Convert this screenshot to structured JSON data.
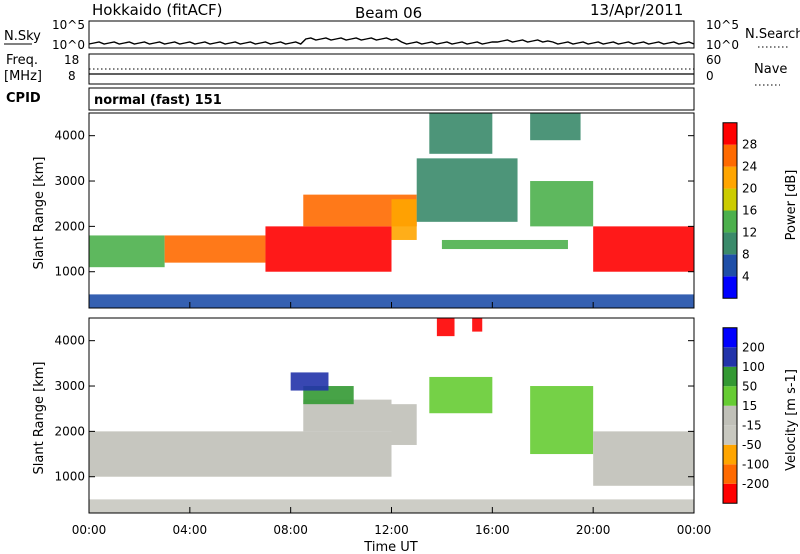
{
  "header": {
    "station": "Hokkaido (fitACF)",
    "beam": "Beam 06",
    "date": "13/Apr/2011"
  },
  "noise_panel": {
    "left_label": "N.Sky",
    "right_label": "N.Search",
    "ticks_left": [
      "10^5",
      "10^0"
    ],
    "ticks_right": [
      "10^5",
      "10^0"
    ]
  },
  "freq_panel": {
    "left_label_line1": "Freq.",
    "left_label_line2": "[MHz]",
    "right_label": "Nave",
    "ticks_left": [
      "18",
      "8"
    ],
    "ticks_right": [
      "60",
      "0"
    ]
  },
  "cpid": {
    "label": "CPID",
    "value": "normal (fast) 151"
  },
  "axes": {
    "ylabel": "Slant Range [km]",
    "xlabel": "Time UT",
    "y_ticks": [
      "4000",
      "3000",
      "2000",
      "1000"
    ],
    "x_ticks": [
      "00:00",
      "04:00",
      "08:00",
      "12:00",
      "16:00",
      "20:00",
      "00:00"
    ]
  },
  "colors": {
    "power_scale": [
      "#0000ff",
      "#1f4fa8",
      "#3a8a6a",
      "#4cb04c",
      "#cccc00",
      "#ffa500",
      "#ff6a00",
      "#ff0000"
    ],
    "velocity_scale": [
      "#ff0000",
      "#ff6a00",
      "#ffa500",
      "#c8c8c0",
      "#c0c0b8",
      "#66cc33",
      "#339933",
      "#2233aa",
      "#0000ff"
    ]
  },
  "chart_data": [
    {
      "type": "heatmap",
      "title": "",
      "xlabel": "Time UT",
      "ylabel": "Slant Range [km]",
      "xlim": [
        0,
        24
      ],
      "ylim": [
        200,
        4500
      ],
      "colorbar": {
        "label": "Power [dB]",
        "ticks": [
          "28",
          "24",
          "20",
          "16",
          "12",
          "8",
          "4"
        ]
      },
      "regions": [
        {
          "t0": 0,
          "t1": 3,
          "r0": 1100,
          "r1": 1800,
          "value": 12
        },
        {
          "t0": 3,
          "t1": 7,
          "r0": 1200,
          "r1": 1800,
          "value": 24
        },
        {
          "t0": 7,
          "t1": 12,
          "r0": 1000,
          "r1": 2000,
          "value": 28
        },
        {
          "t0": 8.5,
          "t1": 13,
          "r0": 2000,
          "r1": 2700,
          "value": 24
        },
        {
          "t0": 12,
          "t1": 13,
          "r0": 1700,
          "r1": 2600,
          "value": 20
        },
        {
          "t0": 13,
          "t1": 17,
          "r0": 2100,
          "r1": 3500,
          "value": 8
        },
        {
          "t0": 14,
          "t1": 19,
          "r0": 1500,
          "r1": 1700,
          "value": 12
        },
        {
          "t0": 17.5,
          "t1": 20,
          "r0": 2000,
          "r1": 3000,
          "value": 12
        },
        {
          "t0": 20,
          "t1": 24,
          "r0": 1000,
          "r1": 2000,
          "value": 28
        },
        {
          "t0": 13.5,
          "t1": 16,
          "r0": 3600,
          "r1": 4500,
          "value": 8
        },
        {
          "t0": 17.5,
          "t1": 19.5,
          "r0": 3900,
          "r1": 4500,
          "value": 8
        },
        {
          "t0": 0,
          "t1": 24,
          "r0": 200,
          "r1": 500,
          "value": 4
        }
      ]
    },
    {
      "type": "heatmap",
      "title": "",
      "xlabel": "Time UT",
      "ylabel": "Slant Range [km]",
      "xlim": [
        0,
        24
      ],
      "ylim": [
        200,
        4500
      ],
      "colorbar": {
        "label": "Velocity [m s-1]",
        "ticks": [
          "200",
          "100",
          "50",
          "15",
          "-15",
          "-50",
          "-100",
          "-200"
        ]
      },
      "regions": [
        {
          "t0": 0,
          "t1": 12,
          "r0": 1000,
          "r1": 2000,
          "value": 0
        },
        {
          "t0": 8.5,
          "t1": 12,
          "r0": 2000,
          "r1": 2700,
          "value": 0
        },
        {
          "t0": 8.5,
          "t1": 10.5,
          "r0": 2600,
          "r1": 3000,
          "value": 70
        },
        {
          "t0": 8,
          "t1": 9.5,
          "r0": 2900,
          "r1": 3300,
          "value": 200
        },
        {
          "t0": 12,
          "t1": 13,
          "r0": 1700,
          "r1": 2600,
          "value": 0
        },
        {
          "t0": 13.5,
          "t1": 16,
          "r0": 2400,
          "r1": 3200,
          "value": 40
        },
        {
          "t0": 17.5,
          "t1": 20,
          "r0": 1500,
          "r1": 3000,
          "value": 40
        },
        {
          "t0": 20,
          "t1": 24,
          "r0": 800,
          "r1": 2000,
          "value": 0
        },
        {
          "t0": 13.8,
          "t1": 14.5,
          "r0": 4100,
          "r1": 4500,
          "value": -200
        },
        {
          "t0": 15.2,
          "t1": 15.6,
          "r0": 4200,
          "r1": 4500,
          "value": -200
        },
        {
          "t0": 0,
          "t1": 24,
          "r0": 200,
          "r1": 500,
          "value": -30
        }
      ]
    }
  ]
}
